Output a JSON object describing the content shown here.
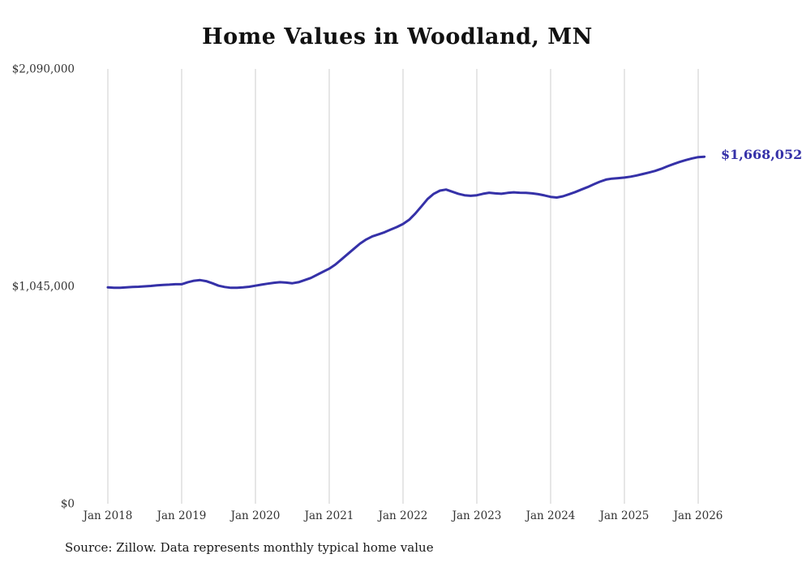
{
  "title": "Home Values in Woodland, MN",
  "source_note": "Source: Zillow. Data represents monthly typical home value",
  "end_label": "$1,668,052",
  "colors": {
    "line": "#3531a8",
    "grid": "#cccccc",
    "axis_text": "#333333",
    "title_text": "#111111",
    "end_label_text": "#3531a8"
  },
  "chart_data": {
    "type": "line",
    "title": "Home Values in Woodland, MN",
    "legend": "none",
    "grid": "vertical-only",
    "ylim": [
      0,
      2090000
    ],
    "y_tick_values": [
      0,
      1045000,
      2090000
    ],
    "y_tick_labels": [
      "$0",
      "$1,045,000",
      "$2,090,000"
    ],
    "x_tick_labels": [
      "Jan 2018",
      "Jan 2019",
      "Jan 2020",
      "Jan 2021",
      "Jan 2022",
      "Jan 2023",
      "Jan 2024",
      "Jan 2025",
      "Jan 2026"
    ],
    "x_start": "2018-01",
    "x_frequency": "monthly",
    "end_value": 1668052,
    "values_monthly": [
      1040000,
      1038000,
      1038000,
      1040000,
      1042000,
      1043000,
      1045000,
      1047000,
      1050000,
      1052000,
      1053000,
      1055000,
      1055000,
      1065000,
      1072000,
      1075000,
      1070000,
      1060000,
      1048000,
      1042000,
      1038000,
      1038000,
      1040000,
      1043000,
      1048000,
      1053000,
      1058000,
      1062000,
      1065000,
      1063000,
      1060000,
      1065000,
      1075000,
      1085000,
      1100000,
      1115000,
      1130000,
      1150000,
      1175000,
      1200000,
      1225000,
      1250000,
      1270000,
      1285000,
      1295000,
      1305000,
      1318000,
      1330000,
      1345000,
      1365000,
      1395000,
      1430000,
      1465000,
      1490000,
      1505000,
      1510000,
      1500000,
      1490000,
      1483000,
      1480000,
      1483000,
      1490000,
      1495000,
      1492000,
      1490000,
      1494000,
      1497000,
      1495000,
      1494000,
      1492000,
      1488000,
      1482000,
      1475000,
      1472000,
      1478000,
      1488000,
      1498000,
      1510000,
      1522000,
      1535000,
      1548000,
      1558000,
      1563000,
      1565000,
      1568000,
      1572000,
      1578000,
      1585000,
      1592000,
      1600000,
      1610000,
      1622000,
      1633000,
      1643000,
      1652000,
      1660000,
      1666000,
      1668052
    ]
  }
}
